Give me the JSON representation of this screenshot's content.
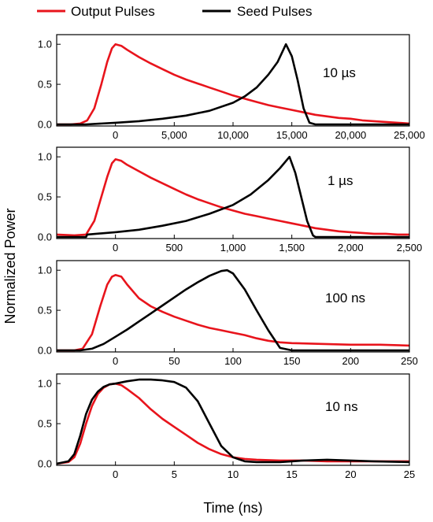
{
  "colors": {
    "output": "#e8141c",
    "seed": "#000000",
    "axis": "#000000",
    "background": "#ffffff"
  },
  "legend": {
    "placement": "top",
    "entries": [
      "Output Pulses",
      "Seed Pulses"
    ]
  },
  "ylabel": "Normalized Power",
  "xlabel": "Time (ns)",
  "chart_data": [
    {
      "type": "line",
      "label": "10 µs",
      "xlim": [
        -5000,
        25000
      ],
      "ylim": [
        -0.02,
        1.12
      ],
      "xticks": [
        0,
        5000,
        10000,
        15000,
        20000,
        25000
      ],
      "xtick_labels": [
        "0",
        "5,000",
        "10,000",
        "15,000",
        "20,000",
        "25,000"
      ],
      "yticks": [
        0,
        0.5,
        1.0
      ],
      "ytick_labels": [
        "0.0",
        "0.5",
        "1.0"
      ],
      "series": [
        {
          "name": "Output Pulses",
          "x": [
            -5000,
            -3800,
            -3000,
            -2400,
            -1800,
            -1200,
            -700,
            -300,
            0,
            500,
            1000,
            2000,
            3000,
            4000,
            5000,
            6000,
            7000,
            8000,
            9000,
            10000,
            11000,
            12000,
            13000,
            14000,
            15000,
            16000,
            17000,
            18000,
            19000,
            20000,
            21000,
            22000,
            23000,
            24000,
            25000
          ],
          "y": [
            0,
            0,
            0.01,
            0.05,
            0.2,
            0.5,
            0.78,
            0.95,
            1.0,
            0.98,
            0.93,
            0.84,
            0.76,
            0.69,
            0.62,
            0.56,
            0.51,
            0.46,
            0.41,
            0.36,
            0.32,
            0.28,
            0.24,
            0.21,
            0.18,
            0.15,
            0.12,
            0.1,
            0.08,
            0.07,
            0.05,
            0.04,
            0.03,
            0.02,
            0.01
          ]
        },
        {
          "name": "Seed Pulses",
          "x": [
            -5000,
            -2500,
            0,
            2000,
            4000,
            6000,
            8000,
            10000,
            11000,
            12000,
            13000,
            13800,
            14500,
            15000,
            15500,
            16000,
            16500,
            17000,
            20000,
            25000
          ],
          "y": [
            0,
            0,
            0.02,
            0.04,
            0.07,
            0.11,
            0.17,
            0.27,
            0.35,
            0.46,
            0.62,
            0.78,
            1.0,
            0.85,
            0.55,
            0.2,
            0.02,
            0,
            0,
            0
          ]
        }
      ]
    },
    {
      "type": "line",
      "label": "1 µs",
      "xlim": [
        -500,
        2500
      ],
      "ylim": [
        -0.02,
        1.12
      ],
      "xticks": [
        0,
        500,
        1000,
        1500,
        2000,
        2500
      ],
      "xtick_labels": [
        "0",
        "500",
        "1,000",
        "1,500",
        "2,000",
        "2,500"
      ],
      "yticks": [
        0,
        0.5,
        1.0
      ],
      "ytick_labels": [
        "0.0",
        "0.5",
        "1.0"
      ],
      "series": [
        {
          "name": "Output Pulses",
          "x": [
            -500,
            -350,
            -250,
            -180,
            -120,
            -70,
            -30,
            0,
            50,
            100,
            200,
            300,
            400,
            500,
            600,
            700,
            800,
            900,
            1000,
            1100,
            1200,
            1300,
            1400,
            1500,
            1600,
            1700,
            1800,
            1900,
            2000,
            2100,
            2200,
            2300,
            2400,
            2500
          ],
          "y": [
            0.03,
            0.02,
            0.03,
            0.2,
            0.5,
            0.75,
            0.92,
            0.97,
            0.95,
            0.9,
            0.82,
            0.74,
            0.67,
            0.6,
            0.53,
            0.47,
            0.42,
            0.37,
            0.33,
            0.29,
            0.26,
            0.23,
            0.2,
            0.17,
            0.14,
            0.11,
            0.09,
            0.07,
            0.06,
            0.05,
            0.04,
            0.04,
            0.03,
            0.03
          ]
        },
        {
          "name": "Seed Pulses",
          "x": [
            -500,
            -250,
            -240,
            0,
            200,
            400,
            600,
            800,
            1000,
            1150,
            1300,
            1400,
            1480,
            1530,
            1580,
            1630,
            1680,
            1700,
            2000,
            2500
          ],
          "y": [
            0,
            0,
            0.03,
            0.06,
            0.09,
            0.14,
            0.2,
            0.29,
            0.4,
            0.53,
            0.71,
            0.86,
            1.0,
            0.8,
            0.5,
            0.2,
            0.02,
            0,
            0,
            0
          ]
        }
      ]
    },
    {
      "type": "line",
      "label": "100 ns",
      "xlim": [
        -50,
        250
      ],
      "ylim": [
        -0.02,
        1.12
      ],
      "xticks": [
        0,
        50,
        100,
        150,
        200,
        250
      ],
      "xtick_labels": [
        "0",
        "50",
        "100",
        "150",
        "200",
        "250"
      ],
      "yticks": [
        0,
        0.5,
        1.0
      ],
      "ytick_labels": [
        "0.0",
        "0.5",
        "1.0"
      ],
      "series": [
        {
          "name": "Output Pulses",
          "x": [
            -50,
            -35,
            -28,
            -20,
            -13,
            -7,
            -3,
            0,
            5,
            10,
            20,
            30,
            40,
            50,
            60,
            70,
            80,
            90,
            100,
            110,
            120,
            130,
            140,
            150,
            175,
            200,
            225,
            250
          ],
          "y": [
            0,
            0,
            0.02,
            0.2,
            0.55,
            0.82,
            0.92,
            0.94,
            0.92,
            0.82,
            0.65,
            0.55,
            0.48,
            0.42,
            0.37,
            0.32,
            0.28,
            0.25,
            0.22,
            0.19,
            0.15,
            0.12,
            0.1,
            0.09,
            0.08,
            0.07,
            0.07,
            0.06
          ]
        },
        {
          "name": "Seed Pulses",
          "x": [
            -50,
            -30,
            -20,
            -10,
            0,
            10,
            20,
            30,
            40,
            50,
            60,
            70,
            80,
            90,
            95,
            100,
            110,
            120,
            130,
            140,
            150,
            200,
            250
          ],
          "y": [
            0,
            0,
            0.02,
            0.08,
            0.17,
            0.26,
            0.36,
            0.46,
            0.56,
            0.66,
            0.76,
            0.85,
            0.93,
            0.99,
            1.0,
            0.96,
            0.76,
            0.5,
            0.25,
            0.03,
            0,
            0,
            0
          ]
        }
      ]
    },
    {
      "type": "line",
      "label": "10 ns",
      "xlim": [
        -5,
        25
      ],
      "ylim": [
        -0.02,
        1.12
      ],
      "xticks": [
        0,
        5,
        10,
        15,
        20,
        25
      ],
      "xtick_labels": [
        "0",
        "5",
        "10",
        "15",
        "20",
        "25"
      ],
      "yticks": [
        0,
        0.5,
        1.0
      ],
      "ytick_labels": [
        "0.0",
        "0.5",
        "1.0"
      ],
      "series": [
        {
          "name": "Output Pulses",
          "x": [
            -5,
            -4,
            -3.5,
            -3,
            -2.5,
            -2,
            -1.5,
            -1,
            -0.5,
            0,
            0.5,
            1,
            2,
            3,
            4,
            5,
            6,
            7,
            8,
            9,
            10,
            11,
            12,
            14,
            16,
            18,
            20,
            22,
            25
          ],
          "y": [
            0,
            0.02,
            0.08,
            0.25,
            0.5,
            0.72,
            0.87,
            0.95,
            0.99,
            1.0,
            0.98,
            0.93,
            0.82,
            0.68,
            0.56,
            0.46,
            0.36,
            0.26,
            0.18,
            0.12,
            0.08,
            0.06,
            0.05,
            0.04,
            0.04,
            0.03,
            0.03,
            0.03,
            0.03
          ]
        },
        {
          "name": "Seed Pulses",
          "x": [
            -5,
            -4,
            -3.5,
            -3,
            -2.5,
            -2,
            -1.5,
            -1,
            -0.5,
            0,
            1,
            2,
            3,
            4,
            5,
            6,
            7,
            8,
            9,
            10,
            11,
            12,
            14,
            16,
            18,
            20,
            22,
            25
          ],
          "y": [
            0,
            0.03,
            0.12,
            0.35,
            0.62,
            0.8,
            0.9,
            0.96,
            0.99,
            1.0,
            1.03,
            1.05,
            1.05,
            1.04,
            1.02,
            0.95,
            0.78,
            0.5,
            0.22,
            0.08,
            0.03,
            0.02,
            0.02,
            0.04,
            0.05,
            0.04,
            0.03,
            0.02
          ]
        }
      ]
    }
  ]
}
